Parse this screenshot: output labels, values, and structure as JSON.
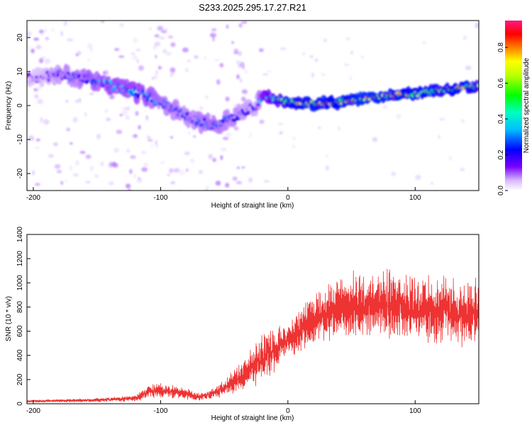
{
  "title": "S233.2025.295.17.27.R21",
  "chart_data": [
    {
      "type": "heatmap",
      "title": "S233.2025.295.17.27.R21",
      "xlabel": "Height of straight line (km)",
      "ylabel": "Frequency (Hz)",
      "xlim": [
        -205,
        150
      ],
      "ylim": [
        -25,
        25
      ],
      "xticks": [
        -200,
        -100,
        0,
        100
      ],
      "yticks": [
        -20,
        -10,
        0,
        10,
        20
      ],
      "colorbar": {
        "label": "Normalized spectral amplitude",
        "range": [
          0,
          0.95
        ],
        "ticks": [
          0.0,
          0.2,
          0.4,
          0.6,
          0.8
        ],
        "ticklabels": [
          "0.0",
          "0.2",
          "0.4",
          "0.6",
          "0.8"
        ]
      },
      "ridge": {
        "x": [
          -200,
          -180,
          -160,
          -140,
          -120,
          -100,
          -80,
          -60,
          -40,
          -25,
          -20,
          0,
          20,
          40,
          60,
          80,
          100,
          120,
          140,
          150
        ],
        "frequency": [
          8,
          9,
          8,
          6,
          4,
          1,
          -3,
          -6,
          -3,
          0,
          3,
          1,
          0.5,
          1,
          2,
          3,
          3.5,
          4.5,
          5.5,
          5.5
        ],
        "amplitude": [
          0.15,
          0.25,
          0.3,
          0.35,
          0.35,
          0.3,
          0.25,
          0.3,
          0.25,
          0.2,
          0.4,
          0.7,
          0.8,
          0.75,
          0.85,
          0.8,
          0.75,
          0.7,
          0.8,
          0.6
        ]
      }
    },
    {
      "type": "line",
      "xlabel": "Height of straight line (km)",
      "ylabel": "SNR (10 * v/v)",
      "xlim": [
        -205,
        150
      ],
      "ylim": [
        0,
        1400
      ],
      "xticks": [
        -200,
        -100,
        0,
        100
      ],
      "yticks": [
        0,
        200,
        400,
        600,
        800,
        1000,
        1200,
        1400
      ],
      "color": "#ee3333",
      "series": [
        {
          "name": "SNR",
          "x": [
            -205,
            -180,
            -150,
            -120,
            -110,
            -100,
            -85,
            -70,
            -60,
            -50,
            -40,
            -30,
            -20,
            -10,
            0,
            10,
            20,
            40,
            60,
            80,
            100,
            120,
            140,
            150
          ],
          "mean": [
            20,
            25,
            30,
            45,
            100,
            110,
            90,
            60,
            80,
            130,
            200,
            280,
            380,
            450,
            520,
            600,
            700,
            780,
            820,
            820,
            790,
            760,
            740,
            760
          ],
          "range": [
            15,
            20,
            25,
            40,
            80,
            90,
            80,
            50,
            60,
            100,
            160,
            220,
            300,
            260,
            200,
            260,
            320,
            380,
            420,
            430,
            430,
            420,
            400,
            400
          ]
        }
      ]
    }
  ]
}
